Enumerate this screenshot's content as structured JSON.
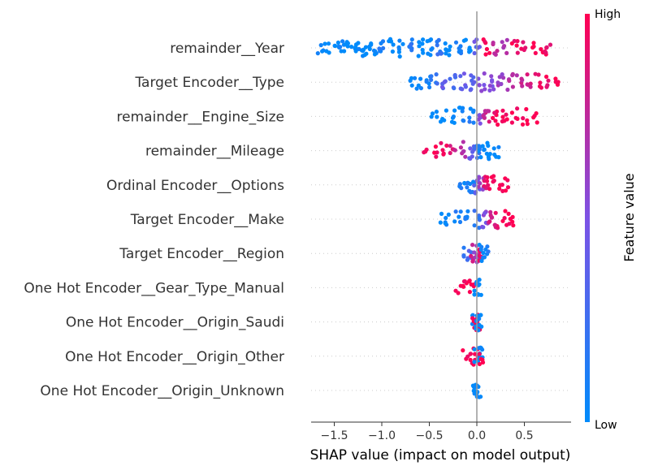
{
  "chart_data": {
    "type": "scatter",
    "subtype": "shap-beeswarm-summary",
    "title": "",
    "xlabel": "SHAP value (impact on model output)",
    "ylabel": "",
    "xlim": [
      -1.78,
      0.92
    ],
    "xticks": [
      {
        "value": -1.5,
        "label": "−1.5"
      },
      {
        "value": -1.0,
        "label": "−1.0"
      },
      {
        "value": -0.5,
        "label": "−0.5"
      },
      {
        "value": 0.0,
        "label": "0.0"
      },
      {
        "value": 0.5,
        "label": "0.5"
      }
    ],
    "zero_line": 0,
    "grid": false,
    "colorbar": {
      "title": "Feature value",
      "high_label": "High",
      "low_label": "Low",
      "low_color": "#008bfb",
      "mid_color": "#7c52e5",
      "high_color": "#ff0052"
    },
    "features": [
      {
        "name": "remainder__Year",
        "points": [
          [
            -1.65,
            0.05
          ],
          [
            -1.58,
            -0.05
          ],
          [
            -1.48,
            0.0
          ],
          [
            -1.42,
            0.05
          ],
          [
            -1.35,
            -0.05
          ],
          [
            -1.28,
            0.0
          ],
          [
            -1.22,
            0.05
          ],
          [
            -1.15,
            -0.05
          ],
          [
            -1.08,
            0.0
          ],
          [
            -1.0,
            0.1
          ],
          [
            -0.9,
            -0.1
          ],
          [
            -0.8,
            0.0
          ],
          [
            -0.7,
            0.15
          ],
          [
            -0.6,
            -0.15
          ],
          [
            -0.5,
            0.0
          ],
          [
            -0.4,
            0.2
          ],
          [
            -0.3,
            -0.2
          ],
          [
            -0.2,
            0.1
          ],
          [
            -0.1,
            -0.3
          ],
          [
            0.0,
            0.4
          ],
          [
            0.1,
            1.0
          ],
          [
            0.2,
            0.8
          ],
          [
            0.3,
            0.7
          ],
          [
            0.4,
            0.95
          ],
          [
            0.5,
            0.9
          ],
          [
            0.6,
            1.0
          ],
          [
            0.7,
            1.0
          ],
          [
            0.75,
            0.95
          ]
        ]
      },
      {
        "name": "Target Encoder__Type",
        "points": [
          [
            -0.68,
            0.0
          ],
          [
            -0.6,
            0.05
          ],
          [
            -0.52,
            0.1
          ],
          [
            -0.45,
            0.2
          ],
          [
            -0.35,
            0.4
          ],
          [
            -0.25,
            0.3
          ],
          [
            -0.15,
            0.4
          ],
          [
            -0.05,
            0.35
          ],
          [
            0.05,
            0.5
          ],
          [
            0.15,
            0.5
          ],
          [
            0.25,
            0.6
          ],
          [
            0.35,
            0.7
          ],
          [
            0.45,
            0.75
          ],
          [
            0.55,
            0.8
          ],
          [
            0.65,
            0.9
          ],
          [
            0.75,
            0.95
          ],
          [
            0.85,
            1.0
          ]
        ]
      },
      {
        "name": "remainder__Engine_Size",
        "points": [
          [
            -0.45,
            0.0
          ],
          [
            -0.35,
            0.05
          ],
          [
            -0.25,
            0.0
          ],
          [
            -0.15,
            0.05
          ],
          [
            -0.05,
            0.1
          ],
          [
            0.05,
            0.5
          ],
          [
            0.1,
            0.8
          ],
          [
            0.2,
            0.95
          ],
          [
            0.3,
            1.0
          ],
          [
            0.4,
            1.0
          ],
          [
            0.5,
            1.0
          ],
          [
            0.62,
            1.0
          ]
        ]
      },
      {
        "name": "remainder__Mileage",
        "points": [
          [
            -0.55,
            1.0
          ],
          [
            -0.45,
            1.0
          ],
          [
            -0.35,
            0.95
          ],
          [
            -0.25,
            0.85
          ],
          [
            -0.15,
            0.7
          ],
          [
            -0.05,
            0.4
          ],
          [
            0.0,
            0.2
          ],
          [
            0.05,
            0.05
          ],
          [
            0.12,
            0.0
          ],
          [
            0.2,
            0.0
          ]
        ]
      },
      {
        "name": "Ordinal Encoder__Options",
        "points": [
          [
            -0.15,
            0.1
          ],
          [
            -0.1,
            0.05
          ],
          [
            -0.05,
            0.1
          ],
          [
            0.0,
            0.4
          ],
          [
            0.05,
            0.6
          ],
          [
            0.1,
            0.9
          ],
          [
            0.15,
            0.95
          ],
          [
            0.25,
            1.0
          ],
          [
            0.3,
            1.0
          ]
        ]
      },
      {
        "name": "Target Encoder__Make",
        "points": [
          [
            -0.35,
            0.0
          ],
          [
            -0.3,
            0.05
          ],
          [
            -0.2,
            0.1
          ],
          [
            -0.1,
            0.1
          ],
          [
            0.0,
            0.2
          ],
          [
            0.08,
            0.5
          ],
          [
            0.15,
            0.8
          ],
          [
            0.22,
            0.9
          ],
          [
            0.3,
            1.0
          ],
          [
            0.36,
            1.0
          ]
        ]
      },
      {
        "name": "Target Encoder__Region",
        "points": [
          [
            -0.15,
            0.2
          ],
          [
            -0.08,
            0.3
          ],
          [
            -0.03,
            0.8
          ],
          [
            0.0,
            0.6
          ],
          [
            0.03,
            0.9
          ],
          [
            0.06,
            0.05
          ],
          [
            0.1,
            0.1
          ]
        ]
      },
      {
        "name": "One Hot Encoder__Gear_Type_Manual",
        "points": [
          [
            -0.2,
            1.0
          ],
          [
            -0.12,
            1.0
          ],
          [
            -0.05,
            1.0
          ],
          [
            0.0,
            0.0
          ],
          [
            0.02,
            0.0
          ]
        ]
      },
      {
        "name": "One Hot Encoder__Origin_Saudi",
        "points": [
          [
            -0.06,
            0.0
          ],
          [
            -0.02,
            1.0
          ],
          [
            0.0,
            1.0
          ],
          [
            0.02,
            0.0
          ],
          [
            0.05,
            0.0
          ]
        ]
      },
      {
        "name": "One Hot Encoder__Origin_Other",
        "points": [
          [
            -0.12,
            1.0
          ],
          [
            -0.06,
            1.0
          ],
          [
            -0.02,
            1.0
          ],
          [
            0.0,
            0.0
          ],
          [
            0.03,
            0.0
          ],
          [
            0.06,
            1.0
          ]
        ]
      },
      {
        "name": "One Hot Encoder__Origin_Unknown",
        "points": [
          [
            -0.01,
            0.0
          ],
          [
            0.0,
            0.0
          ],
          [
            0.01,
            0.0
          ]
        ]
      }
    ]
  }
}
